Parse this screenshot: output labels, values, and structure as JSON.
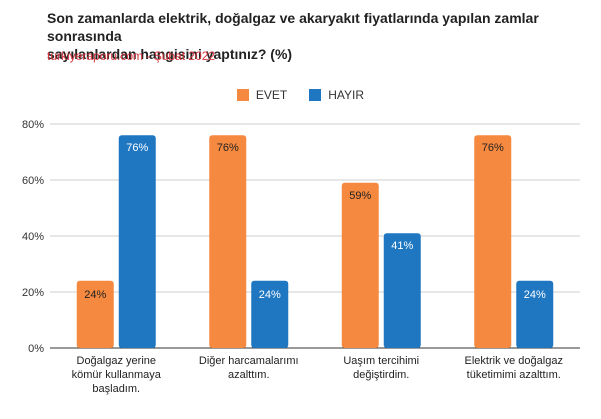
{
  "title_line1": "Son zamanlarda elektrik, doğalgaz ve akaryakıt fiyatlarında yapılan zamlar sonrasında",
  "title_line2": "sayılanlardan hangisini yaptınız?  (%)",
  "subtitle": "turkiyeraporu.com - Şubat 2022",
  "colors": {
    "evet": "#f5893f",
    "hayir": "#1f77c2"
  },
  "chart_data": {
    "type": "bar",
    "categories": [
      [
        "Doğalgaz yerine",
        "kömür kullanmaya",
        "başladım."
      ],
      [
        "Diğer harcamalarımı",
        "azalttım."
      ],
      [
        "Uaşım tercihimi",
        "değiştirdim."
      ],
      [
        "Elektrik ve doğalgaz",
        "tüketimimi azalttım."
      ]
    ],
    "series": [
      {
        "name": "EVET",
        "values": [
          24,
          76,
          59,
          76
        ]
      },
      {
        "name": "HAYIR",
        "values": [
          76,
          24,
          41,
          24
        ]
      }
    ],
    "data_labels": [
      [
        "24%",
        "76%",
        "59%",
        "76%"
      ],
      [
        "76%",
        "24%",
        "41%",
        "24%"
      ]
    ],
    "y_ticks": [
      "0%",
      "20%",
      "40%",
      "60%",
      "80%"
    ],
    "ylim": [
      0,
      80
    ],
    "grid": true,
    "legend_position": "top"
  }
}
